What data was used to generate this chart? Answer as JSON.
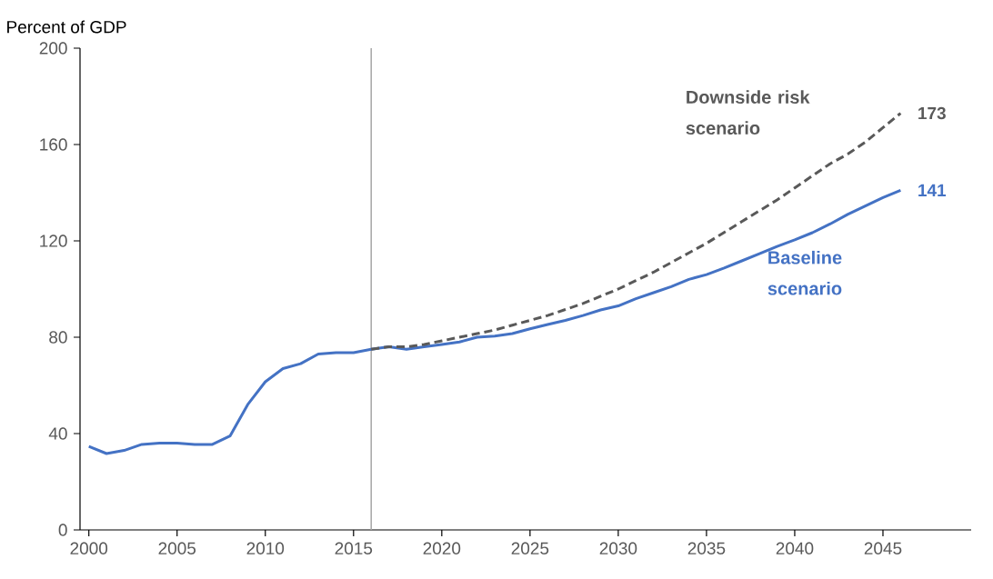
{
  "chart_data": {
    "type": "line",
    "ylabel": "Percent of GDP",
    "xlim": [
      1999.5,
      2050
    ],
    "ylim": [
      0,
      200
    ],
    "xticks": [
      2000,
      2005,
      2010,
      2015,
      2020,
      2025,
      2030,
      2035,
      2040,
      2045
    ],
    "yticks": [
      0,
      40,
      80,
      120,
      160,
      200
    ],
    "grid": false,
    "legend": false,
    "marker": "none",
    "ref_lines": [
      {
        "axis": "x",
        "value": 2016,
        "color": "#a6a6a6"
      }
    ],
    "series": [
      {
        "name": "Baseline scenario",
        "color": "#4472c4",
        "line_style": "solid",
        "x": [
          2000,
          2001,
          2002,
          2003,
          2004,
          2005,
          2006,
          2007,
          2008,
          2009,
          2010,
          2011,
          2012,
          2013,
          2014,
          2015,
          2016,
          2017,
          2018,
          2019,
          2020,
          2021,
          2022,
          2023,
          2024,
          2025,
          2026,
          2027,
          2028,
          2029,
          2030,
          2031,
          2032,
          2033,
          2034,
          2035,
          2036,
          2037,
          2038,
          2039,
          2040,
          2041,
          2042,
          2043,
          2044,
          2045,
          2046
        ],
        "values": [
          34.7,
          31.7,
          33,
          35.5,
          36,
          36,
          35.5,
          35.5,
          39,
          52,
          61.5,
          67,
          69,
          73,
          73.6,
          73.6,
          75,
          76,
          75,
          76,
          77,
          78,
          80,
          80.5,
          81.5,
          83.5,
          85.3,
          87,
          89,
          91.3,
          93,
          96,
          98.5,
          101,
          104,
          106,
          108.7,
          111.7,
          114.7,
          117.7,
          120.4,
          123.4,
          127,
          131,
          134.5,
          138,
          141
        ],
        "value_labels": [
          null,
          null,
          null,
          null,
          null,
          null,
          null,
          null,
          null,
          null,
          null,
          null,
          null,
          null,
          null,
          null,
          null,
          null,
          null,
          null,
          null,
          null,
          null,
          null,
          null,
          null,
          null,
          null,
          null,
          null,
          null,
          null,
          null,
          null,
          null,
          null,
          null,
          null,
          null,
          null,
          null,
          null,
          null,
          null,
          null,
          null,
          "141"
        ]
      },
      {
        "name": "Downside risk scenario",
        "color": "#595959",
        "line_style": "dashed",
        "x": [
          2016,
          2017,
          2018,
          2019,
          2020,
          2021,
          2022,
          2023,
          2024,
          2025,
          2026,
          2027,
          2028,
          2029,
          2030,
          2031,
          2032,
          2033,
          2034,
          2035,
          2036,
          2037,
          2038,
          2039,
          2040,
          2041,
          2042,
          2043,
          2044,
          2045,
          2046
        ],
        "values": [
          75,
          76,
          76,
          77,
          78.5,
          80,
          81.5,
          83,
          85,
          87,
          89,
          91.5,
          94,
          97,
          100,
          103.5,
          107,
          111,
          115,
          119,
          123.5,
          128,
          132.5,
          137,
          142,
          147,
          152,
          156,
          161,
          167,
          173
        ],
        "value_labels": [
          null,
          null,
          null,
          null,
          null,
          null,
          null,
          null,
          null,
          null,
          null,
          null,
          null,
          null,
          null,
          null,
          null,
          null,
          null,
          null,
          null,
          null,
          null,
          null,
          null,
          null,
          null,
          null,
          null,
          null,
          "173"
        ]
      }
    ]
  }
}
